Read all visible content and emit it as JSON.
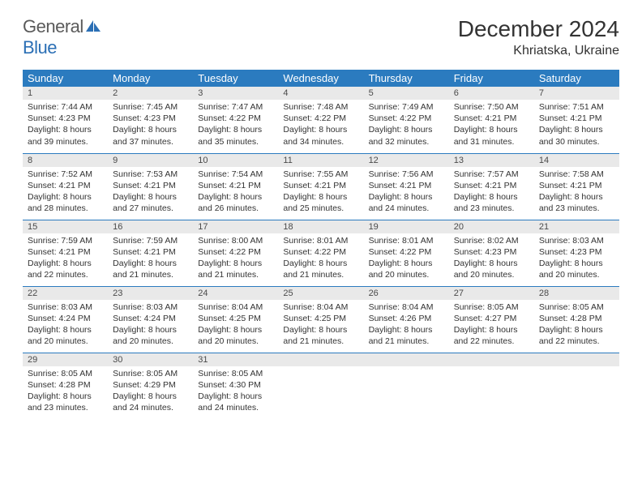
{
  "branding": {
    "word1": "General",
    "word2": "Blue",
    "logo_color": "#2b6fb5",
    "text_color": "#5a5a5a"
  },
  "header": {
    "title": "December 2024",
    "location": "Khriatska, Ukraine"
  },
  "style": {
    "header_bg": "#2b7bbf",
    "header_fg": "#ffffff",
    "daynum_bg": "#e9e9e9",
    "border_color": "#2b7bbf",
    "body_text": "#333333"
  },
  "weekdays": [
    "Sunday",
    "Monday",
    "Tuesday",
    "Wednesday",
    "Thursday",
    "Friday",
    "Saturday"
  ],
  "weeks": [
    [
      {
        "n": "1",
        "sunrise": "Sunrise: 7:44 AM",
        "sunset": "Sunset: 4:23 PM",
        "d1": "Daylight: 8 hours",
        "d2": "and 39 minutes."
      },
      {
        "n": "2",
        "sunrise": "Sunrise: 7:45 AM",
        "sunset": "Sunset: 4:23 PM",
        "d1": "Daylight: 8 hours",
        "d2": "and 37 minutes."
      },
      {
        "n": "3",
        "sunrise": "Sunrise: 7:47 AM",
        "sunset": "Sunset: 4:22 PM",
        "d1": "Daylight: 8 hours",
        "d2": "and 35 minutes."
      },
      {
        "n": "4",
        "sunrise": "Sunrise: 7:48 AM",
        "sunset": "Sunset: 4:22 PM",
        "d1": "Daylight: 8 hours",
        "d2": "and 34 minutes."
      },
      {
        "n": "5",
        "sunrise": "Sunrise: 7:49 AM",
        "sunset": "Sunset: 4:22 PM",
        "d1": "Daylight: 8 hours",
        "d2": "and 32 minutes."
      },
      {
        "n": "6",
        "sunrise": "Sunrise: 7:50 AM",
        "sunset": "Sunset: 4:21 PM",
        "d1": "Daylight: 8 hours",
        "d2": "and 31 minutes."
      },
      {
        "n": "7",
        "sunrise": "Sunrise: 7:51 AM",
        "sunset": "Sunset: 4:21 PM",
        "d1": "Daylight: 8 hours",
        "d2": "and 30 minutes."
      }
    ],
    [
      {
        "n": "8",
        "sunrise": "Sunrise: 7:52 AM",
        "sunset": "Sunset: 4:21 PM",
        "d1": "Daylight: 8 hours",
        "d2": "and 28 minutes."
      },
      {
        "n": "9",
        "sunrise": "Sunrise: 7:53 AM",
        "sunset": "Sunset: 4:21 PM",
        "d1": "Daylight: 8 hours",
        "d2": "and 27 minutes."
      },
      {
        "n": "10",
        "sunrise": "Sunrise: 7:54 AM",
        "sunset": "Sunset: 4:21 PM",
        "d1": "Daylight: 8 hours",
        "d2": "and 26 minutes."
      },
      {
        "n": "11",
        "sunrise": "Sunrise: 7:55 AM",
        "sunset": "Sunset: 4:21 PM",
        "d1": "Daylight: 8 hours",
        "d2": "and 25 minutes."
      },
      {
        "n": "12",
        "sunrise": "Sunrise: 7:56 AM",
        "sunset": "Sunset: 4:21 PM",
        "d1": "Daylight: 8 hours",
        "d2": "and 24 minutes."
      },
      {
        "n": "13",
        "sunrise": "Sunrise: 7:57 AM",
        "sunset": "Sunset: 4:21 PM",
        "d1": "Daylight: 8 hours",
        "d2": "and 23 minutes."
      },
      {
        "n": "14",
        "sunrise": "Sunrise: 7:58 AM",
        "sunset": "Sunset: 4:21 PM",
        "d1": "Daylight: 8 hours",
        "d2": "and 23 minutes."
      }
    ],
    [
      {
        "n": "15",
        "sunrise": "Sunrise: 7:59 AM",
        "sunset": "Sunset: 4:21 PM",
        "d1": "Daylight: 8 hours",
        "d2": "and 22 minutes."
      },
      {
        "n": "16",
        "sunrise": "Sunrise: 7:59 AM",
        "sunset": "Sunset: 4:21 PM",
        "d1": "Daylight: 8 hours",
        "d2": "and 21 minutes."
      },
      {
        "n": "17",
        "sunrise": "Sunrise: 8:00 AM",
        "sunset": "Sunset: 4:22 PM",
        "d1": "Daylight: 8 hours",
        "d2": "and 21 minutes."
      },
      {
        "n": "18",
        "sunrise": "Sunrise: 8:01 AM",
        "sunset": "Sunset: 4:22 PM",
        "d1": "Daylight: 8 hours",
        "d2": "and 21 minutes."
      },
      {
        "n": "19",
        "sunrise": "Sunrise: 8:01 AM",
        "sunset": "Sunset: 4:22 PM",
        "d1": "Daylight: 8 hours",
        "d2": "and 20 minutes."
      },
      {
        "n": "20",
        "sunrise": "Sunrise: 8:02 AM",
        "sunset": "Sunset: 4:23 PM",
        "d1": "Daylight: 8 hours",
        "d2": "and 20 minutes."
      },
      {
        "n": "21",
        "sunrise": "Sunrise: 8:03 AM",
        "sunset": "Sunset: 4:23 PM",
        "d1": "Daylight: 8 hours",
        "d2": "and 20 minutes."
      }
    ],
    [
      {
        "n": "22",
        "sunrise": "Sunrise: 8:03 AM",
        "sunset": "Sunset: 4:24 PM",
        "d1": "Daylight: 8 hours",
        "d2": "and 20 minutes."
      },
      {
        "n": "23",
        "sunrise": "Sunrise: 8:03 AM",
        "sunset": "Sunset: 4:24 PM",
        "d1": "Daylight: 8 hours",
        "d2": "and 20 minutes."
      },
      {
        "n": "24",
        "sunrise": "Sunrise: 8:04 AM",
        "sunset": "Sunset: 4:25 PM",
        "d1": "Daylight: 8 hours",
        "d2": "and 20 minutes."
      },
      {
        "n": "25",
        "sunrise": "Sunrise: 8:04 AM",
        "sunset": "Sunset: 4:25 PM",
        "d1": "Daylight: 8 hours",
        "d2": "and 21 minutes."
      },
      {
        "n": "26",
        "sunrise": "Sunrise: 8:04 AM",
        "sunset": "Sunset: 4:26 PM",
        "d1": "Daylight: 8 hours",
        "d2": "and 21 minutes."
      },
      {
        "n": "27",
        "sunrise": "Sunrise: 8:05 AM",
        "sunset": "Sunset: 4:27 PM",
        "d1": "Daylight: 8 hours",
        "d2": "and 22 minutes."
      },
      {
        "n": "28",
        "sunrise": "Sunrise: 8:05 AM",
        "sunset": "Sunset: 4:28 PM",
        "d1": "Daylight: 8 hours",
        "d2": "and 22 minutes."
      }
    ],
    [
      {
        "n": "29",
        "sunrise": "Sunrise: 8:05 AM",
        "sunset": "Sunset: 4:28 PM",
        "d1": "Daylight: 8 hours",
        "d2": "and 23 minutes."
      },
      {
        "n": "30",
        "sunrise": "Sunrise: 8:05 AM",
        "sunset": "Sunset: 4:29 PM",
        "d1": "Daylight: 8 hours",
        "d2": "and 24 minutes."
      },
      {
        "n": "31",
        "sunrise": "Sunrise: 8:05 AM",
        "sunset": "Sunset: 4:30 PM",
        "d1": "Daylight: 8 hours",
        "d2": "and 24 minutes."
      },
      null,
      null,
      null,
      null
    ]
  ]
}
